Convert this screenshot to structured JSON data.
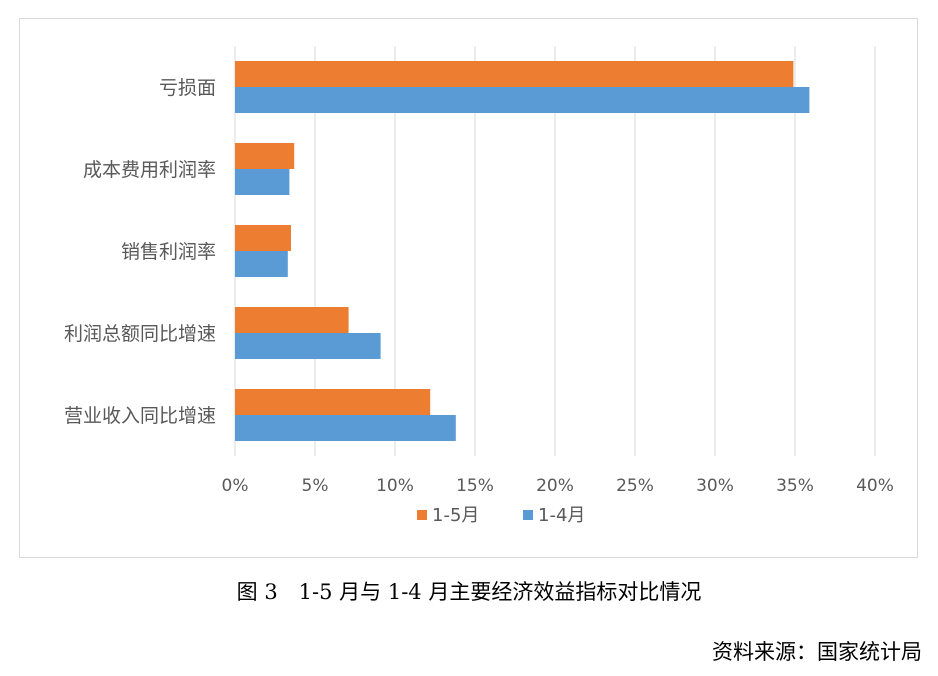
{
  "caption": "图 3　1-5 月与 1-4 月主要经济效益指标对比情况",
  "source": "资料来源：国家统计局",
  "chart_data": {
    "type": "bar",
    "orientation": "horizontal",
    "categories": [
      "亏损面",
      "成本费用利润率",
      "销售利润率",
      "利润总额同比增速",
      "营业收入同比增速"
    ],
    "series": [
      {
        "name": "1-5月",
        "color": "#ed7d31",
        "values": [
          34.9,
          3.7,
          3.5,
          7.1,
          12.2
        ]
      },
      {
        "name": "1-4月",
        "color": "#5b9bd5",
        "values": [
          35.9,
          3.4,
          3.3,
          9.1,
          13.8
        ]
      }
    ],
    "xlim": [
      0,
      40
    ],
    "xticks": [
      "0%",
      "5%",
      "10%",
      "15%",
      "20%",
      "25%",
      "30%",
      "35%",
      "40%"
    ],
    "grid": "vertical",
    "legend": "bottom"
  }
}
